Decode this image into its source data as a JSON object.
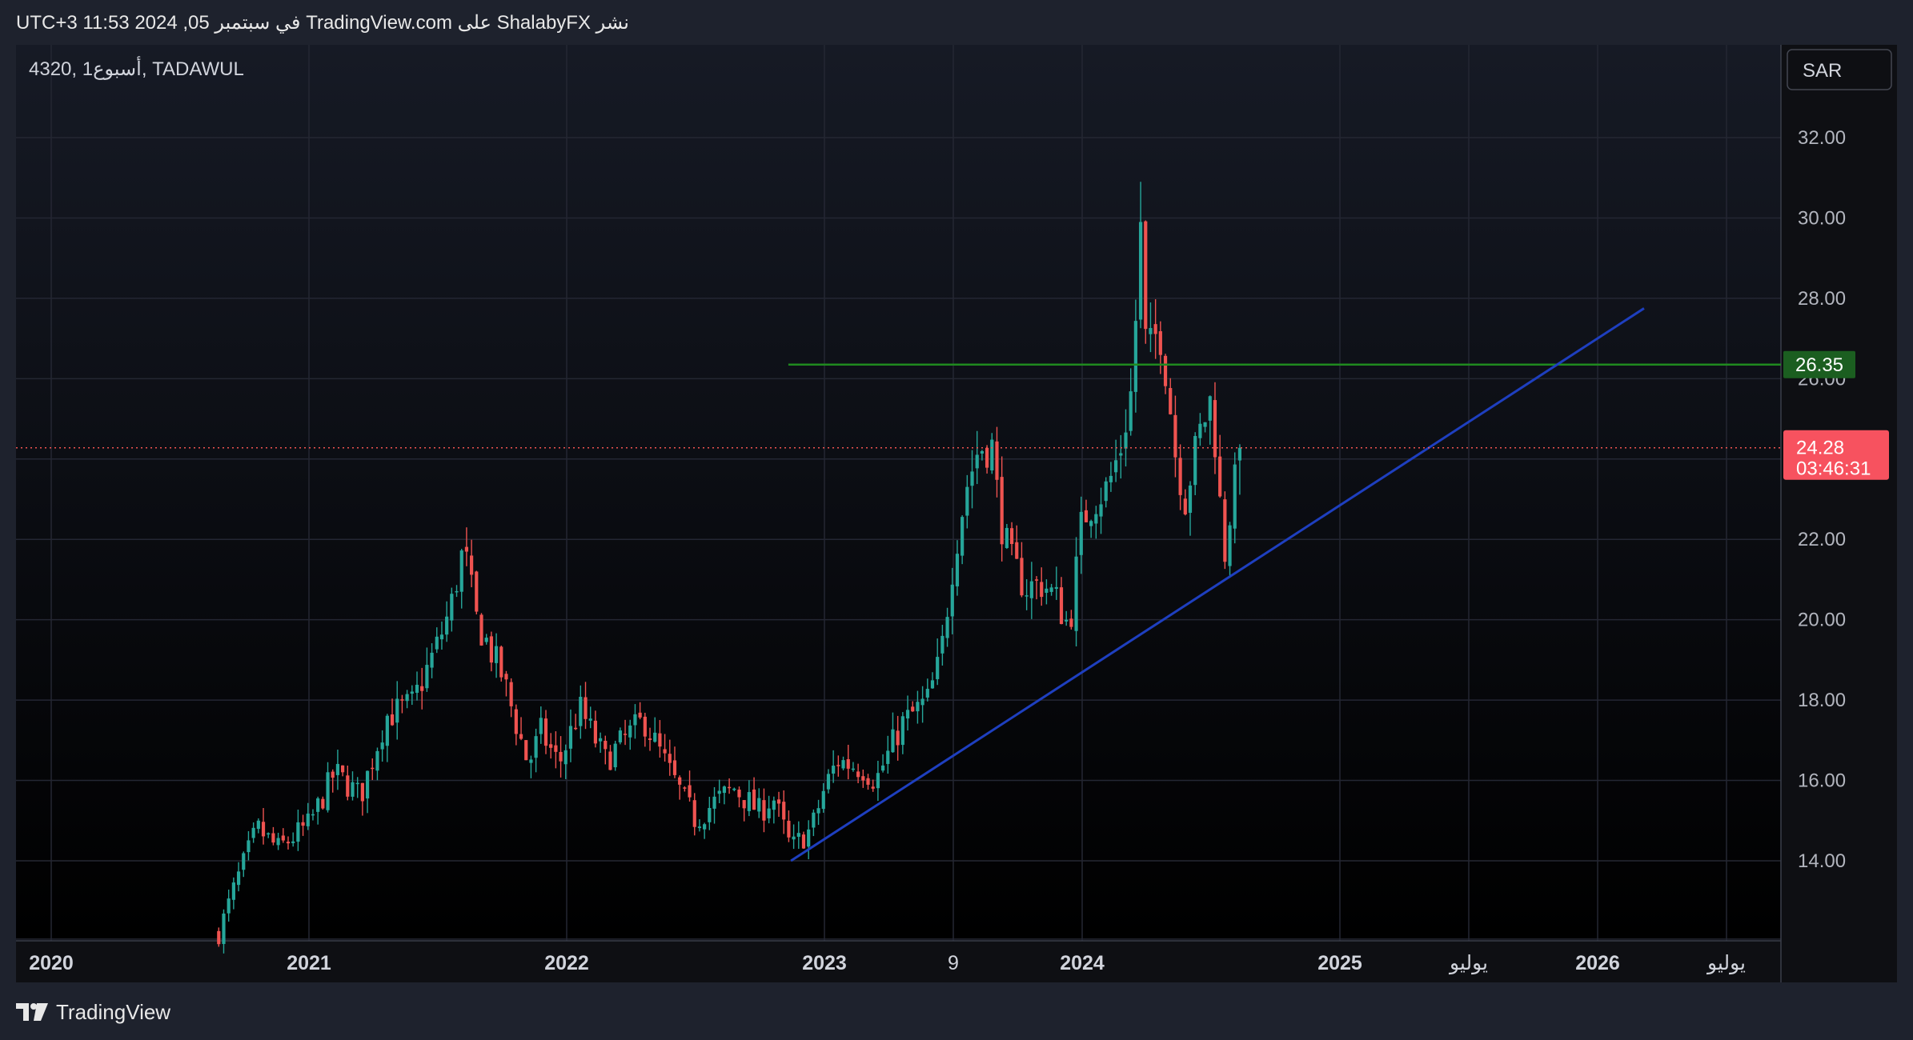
{
  "header": {
    "published_line": "نشر ShalabyFX على TradingView.com في سبتمبر 05, 2024 11:53 UTC+3"
  },
  "symbol_label": "4320, 1أسبوع, TADAWUL",
  "currency_button": "SAR",
  "footer": {
    "brand": "TradingView"
  },
  "colors": {
    "up": "#26a69a",
    "down": "#ef5350",
    "trendline": "#1e3fbf",
    "hline": "#1f8a1f",
    "background": "#0e0f13"
  },
  "chart_data": {
    "type": "candlestick",
    "symbol": "4320",
    "interval": "1أسبوع",
    "exchange": "TADAWUL",
    "currency": "SAR",
    "ylim": [
      12.2,
      34.0
    ],
    "y_ticks": [
      "14.00",
      "16.00",
      "18.00",
      "20.00",
      "22.00",
      "24.00",
      "26.00",
      "28.00",
      "30.00",
      "32.00"
    ],
    "x_ticks": [
      {
        "label": "2020",
        "t": 2020.0,
        "bold": true
      },
      {
        "label": "2021",
        "t": 2021.0,
        "bold": true
      },
      {
        "label": "2022",
        "t": 2022.0,
        "bold": true
      },
      {
        "label": "2023",
        "t": 2023.0,
        "bold": true
      },
      {
        "label": "9",
        "t": 2023.5,
        "bold": false
      },
      {
        "label": "2024",
        "t": 2024.0,
        "bold": true
      },
      {
        "label": "2025",
        "t": 2025.0,
        "bold": true
      },
      {
        "label": "يوليو",
        "t": 2025.5,
        "bold": false
      },
      {
        "label": "2026",
        "t": 2026.0,
        "bold": true
      },
      {
        "label": "يوليو",
        "t": 2026.5,
        "bold": false
      }
    ],
    "last_price": {
      "value": "24.28",
      "countdown": "03:46:31",
      "price": 24.28
    },
    "horizontal_level": {
      "value": "26.35",
      "price": 26.35,
      "from_t": 2022.86
    },
    "trendline": {
      "t1": 2022.87,
      "p1": 14.0,
      "t2": 2026.18,
      "p2": 27.75
    },
    "anchors": [
      [
        2020.65,
        12.2
      ],
      [
        2020.72,
        13.5
      ],
      [
        2020.8,
        14.8
      ],
      [
        2020.88,
        14.3
      ],
      [
        2021.0,
        14.9
      ],
      [
        2021.1,
        16.2
      ],
      [
        2021.2,
        15.6
      ],
      [
        2021.3,
        17.6
      ],
      [
        2021.4,
        17.9
      ],
      [
        2021.5,
        19.4
      ],
      [
        2021.55,
        20.3
      ],
      [
        2021.6,
        21.8
      ],
      [
        2021.65,
        20.0
      ],
      [
        2021.75,
        18.6
      ],
      [
        2021.85,
        16.4
      ],
      [
        2021.9,
        17.2
      ],
      [
        2021.97,
        16.4
      ],
      [
        2022.05,
        17.8
      ],
      [
        2022.15,
        16.5
      ],
      [
        2022.25,
        17.2
      ],
      [
        2022.3,
        17.5
      ],
      [
        2022.4,
        16.2
      ],
      [
        2022.5,
        15.0
      ],
      [
        2022.58,
        15.5
      ],
      [
        2022.65,
        15.8
      ],
      [
        2022.75,
        15.2
      ],
      [
        2022.8,
        15.6
      ],
      [
        2022.87,
        14.3
      ],
      [
        2022.95,
        14.8
      ],
      [
        2023.0,
        15.8
      ],
      [
        2023.05,
        16.5
      ],
      [
        2023.15,
        16.3
      ],
      [
        2023.2,
        16.0
      ],
      [
        2023.3,
        17.4
      ],
      [
        2023.4,
        18.0
      ],
      [
        2023.45,
        19.0
      ],
      [
        2023.5,
        21.5
      ],
      [
        2023.55,
        23.3
      ],
      [
        2023.6,
        24.3
      ],
      [
        2023.65,
        24.3
      ],
      [
        2023.68,
        22.6
      ],
      [
        2023.72,
        21.5
      ],
      [
        2023.78,
        20.8
      ],
      [
        2023.85,
        20.9
      ],
      [
        2023.9,
        20.5
      ],
      [
        2023.95,
        19.8
      ],
      [
        2024.0,
        22.5
      ],
      [
        2024.05,
        23.0
      ],
      [
        2024.1,
        23.3
      ],
      [
        2024.15,
        24.3
      ],
      [
        2024.2,
        26.0
      ],
      [
        2024.22,
        29.8
      ],
      [
        2024.25,
        26.5
      ],
      [
        2024.3,
        27.3
      ],
      [
        2024.33,
        26.0
      ],
      [
        2024.36,
        24.2
      ],
      [
        2024.4,
        23.0
      ],
      [
        2024.45,
        24.5
      ],
      [
        2024.5,
        25.5
      ],
      [
        2024.52,
        24.2
      ],
      [
        2024.55,
        21.5
      ],
      [
        2024.58,
        23.0
      ],
      [
        2024.62,
        24.2
      ]
    ]
  }
}
